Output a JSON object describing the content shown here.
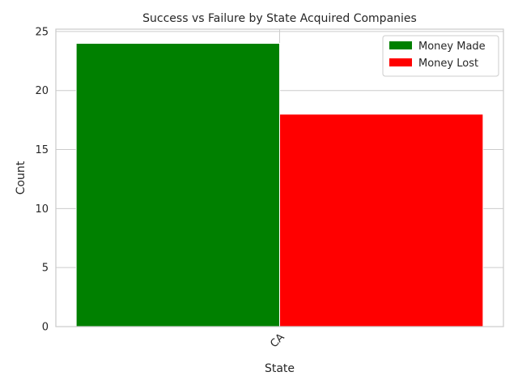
{
  "chart_data": {
    "type": "bar",
    "title": "Success vs Failure by State Acquired Companies",
    "xlabel": "State",
    "ylabel": "Count",
    "categories": [
      "CA"
    ],
    "series": [
      {
        "name": "Money Made",
        "values": [
          24
        ],
        "color": "#008000"
      },
      {
        "name": "Money Lost",
        "values": [
          18
        ],
        "color": "#ff0000"
      }
    ],
    "ylim": [
      0,
      25.2
    ],
    "yticks": [
      0,
      5,
      10,
      15,
      20,
      25
    ],
    "grid": true,
    "legend_position": "top-right",
    "xtick_rotation": "45"
  }
}
